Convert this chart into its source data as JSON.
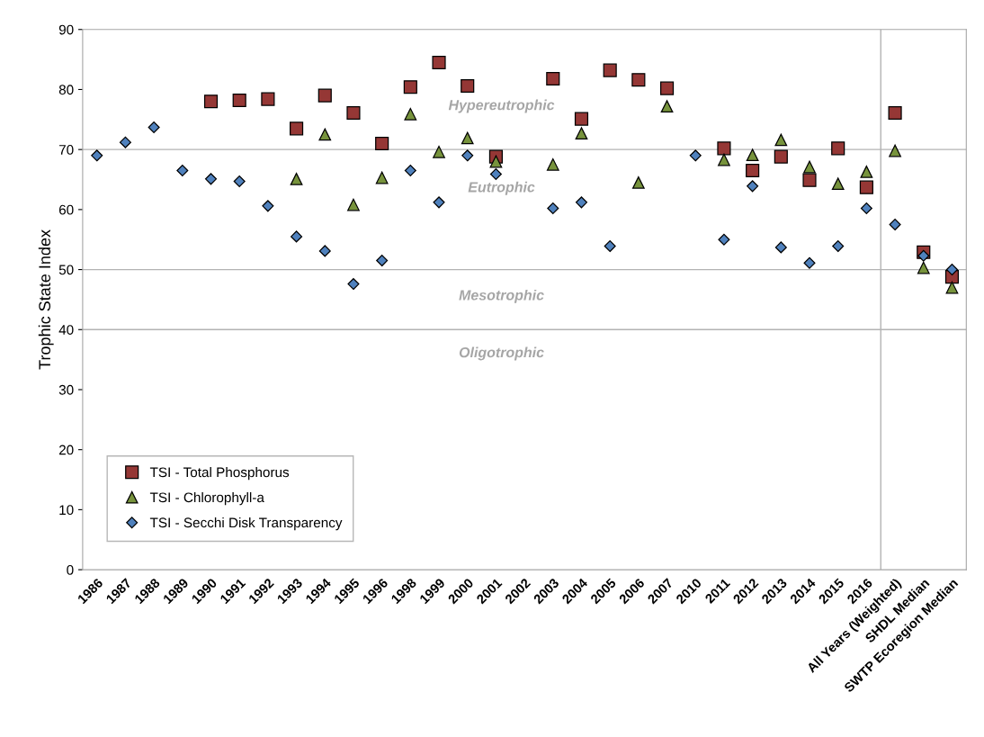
{
  "chart_data": {
    "type": "scatter",
    "ylabel": "Trophic State Index",
    "categories": [
      "1986",
      "1987",
      "1988",
      "1989",
      "1990",
      "1991",
      "1992",
      "1993",
      "1994",
      "1995",
      "1996",
      "1998",
      "1999",
      "2000",
      "2001",
      "2002",
      "2003",
      "2004",
      "2005",
      "2006",
      "2007",
      "2010",
      "2011",
      "2012",
      "2013",
      "2014",
      "2015",
      "2016",
      "All Years (Weighted)",
      "SHDL Median",
      "SWTP Ecoregion Median"
    ],
    "series": [
      {
        "name": "TSI - Total Phosphorus",
        "color": "#953735",
        "marker": "square",
        "values": [
          null,
          null,
          null,
          null,
          78,
          78.2,
          78.4,
          73.5,
          79,
          76.1,
          71,
          80.4,
          84.5,
          80.6,
          68.8,
          null,
          81.8,
          75.1,
          83.2,
          81.6,
          80.2,
          null,
          70.2,
          66.5,
          68.8,
          64.9,
          70.2,
          63.7,
          76.1,
          52.9,
          48.8
        ]
      },
      {
        "name": "TSI - Chlorophyll-a",
        "color": "#77933c",
        "marker": "triangle",
        "values": [
          null,
          null,
          null,
          null,
          null,
          null,
          null,
          65.1,
          72.5,
          60.8,
          65.3,
          75.9,
          69.6,
          71.9,
          68,
          null,
          67.5,
          72.7,
          null,
          64.5,
          77.2,
          null,
          68.3,
          69.1,
          71.6,
          67.1,
          64.3,
          66.3,
          69.8,
          50.3,
          47
        ]
      },
      {
        "name": "TSI - Secchi Disk Transparency",
        "color": "#4f81bd",
        "marker": "diamond",
        "values": [
          69,
          71.2,
          73.7,
          66.5,
          65.1,
          64.7,
          60.6,
          55.5,
          53.1,
          47.6,
          51.5,
          66.5,
          61.2,
          69,
          65.9,
          null,
          60.2,
          61.2,
          53.9,
          null,
          null,
          69,
          55,
          63.9,
          53.7,
          51.1,
          53.9,
          60.2,
          57.5,
          52.3,
          50
        ]
      }
    ],
    "ylim": [
      0,
      90
    ],
    "yticks": [
      0,
      10,
      20,
      30,
      40,
      50,
      60,
      70,
      80,
      90
    ],
    "grid": false,
    "legend": "bottom left",
    "ref_lines": [
      {
        "axis": "y",
        "value": 70,
        "color": "#b3b3b3"
      },
      {
        "axis": "y",
        "value": 50,
        "color": "#b3b3b3"
      },
      {
        "axis": "y",
        "value": 40,
        "color": "#b3b3b3"
      }
    ],
    "annotations": [
      "Hypereutrophic",
      "Eutrophic",
      "Mesotrophic",
      "Oligotrophic"
    ]
  }
}
